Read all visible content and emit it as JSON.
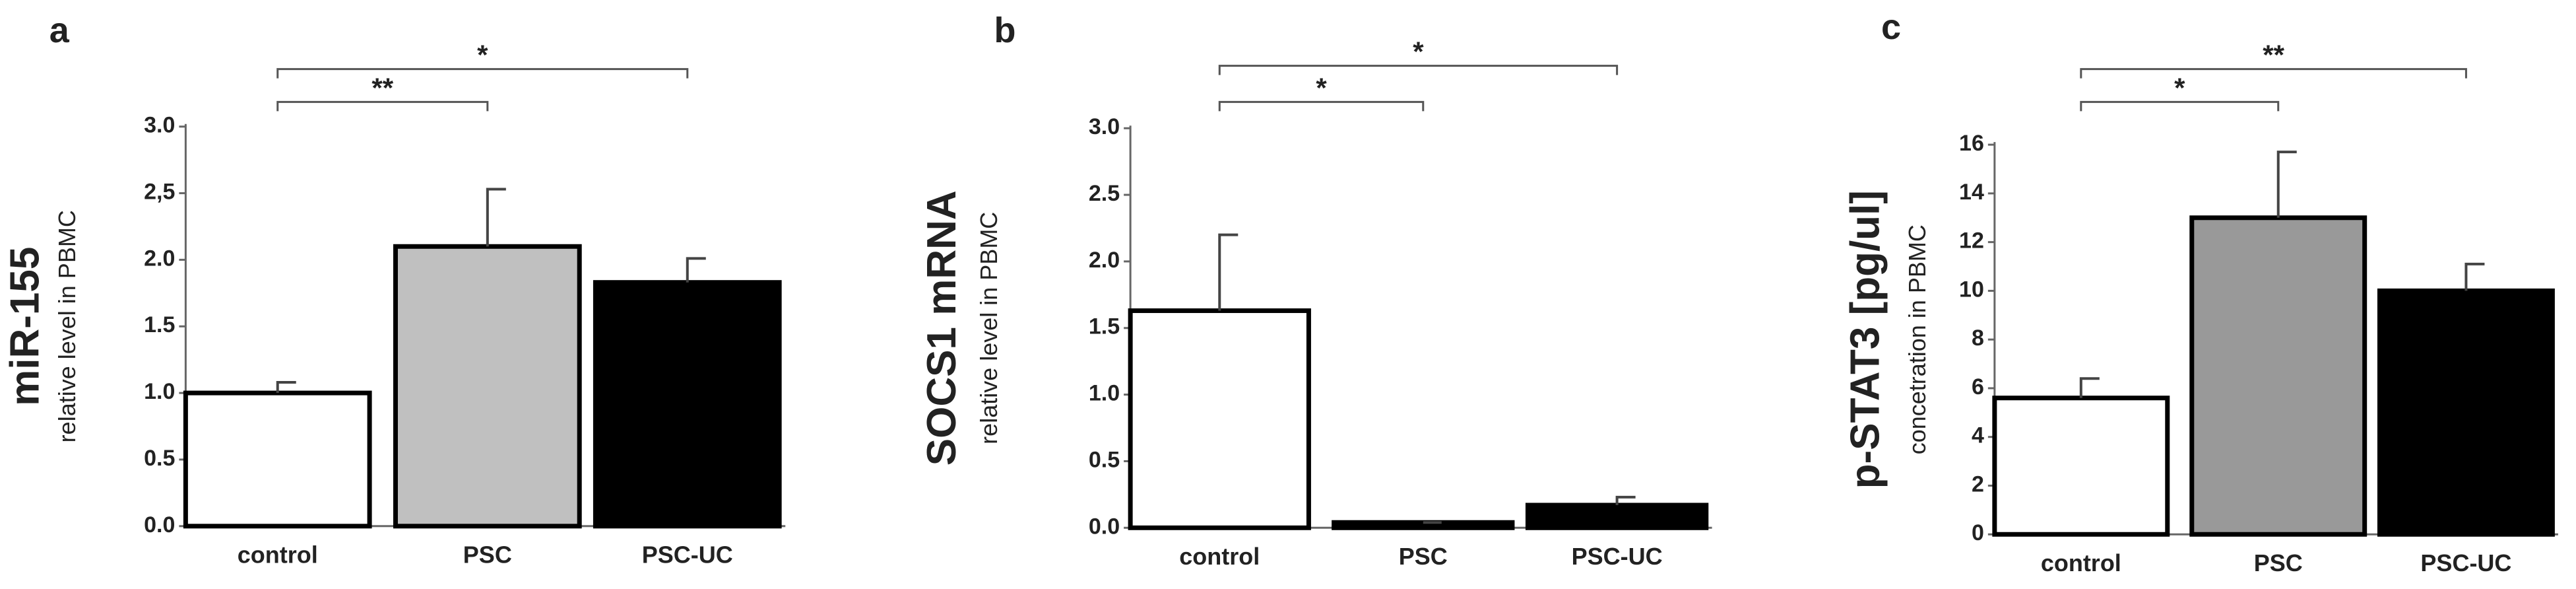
{
  "chart_data": [
    {
      "type": "bar",
      "panel_label": "a",
      "ylabel": "miR-155",
      "ylabel_sub": "relative level in PBMC",
      "categories": [
        "control",
        "PSC",
        "PSC-UC"
      ],
      "values": [
        1.0,
        2.1,
        1.83
      ],
      "errors": [
        0.08,
        0.43,
        0.18
      ],
      "colors": [
        "#ffffff",
        "#c0c0c0",
        "#000000"
      ],
      "ylim": [
        0,
        3
      ],
      "yticks": [
        {
          "value": 0,
          "label": "0.0"
        },
        0.5,
        {
          "value": 1,
          "label": "1.0"
        },
        1.5,
        {
          "value": 2,
          "label": "2.0"
        },
        {
          "value": 2.5,
          "label": "2,5"
        },
        {
          "value": 3,
          "label": "3.0"
        }
      ],
      "significance": [
        {
          "between": [
            0,
            1
          ],
          "label": "**"
        },
        {
          "between": [
            0,
            2
          ],
          "label": "*"
        }
      ]
    },
    {
      "type": "bar",
      "panel_label": "b",
      "ylabel": "SOCS1 mRNA",
      "ylabel_sub": "relative level in PBMC",
      "categories": [
        "control",
        "PSC",
        "PSC-UC"
      ],
      "values": [
        1.63,
        0.04,
        0.17
      ],
      "errors": [
        0.57,
        0,
        0.06
      ],
      "colors": [
        "#ffffff",
        "#000000",
        "#000000"
      ],
      "ylim": [
        0,
        3
      ],
      "yticks": [
        {
          "value": 0,
          "label": "0.0"
        },
        0.5,
        {
          "value": 1,
          "label": "1.0"
        },
        1.5,
        {
          "value": 2,
          "label": "2.0"
        },
        2.5,
        {
          "value": 3,
          "label": "3.0"
        }
      ],
      "significance": [
        {
          "between": [
            0,
            1
          ],
          "label": "*"
        },
        {
          "between": [
            0,
            2
          ],
          "label": "*"
        }
      ]
    },
    {
      "type": "bar",
      "panel_label": "c",
      "ylabel": "p-STAT3 [pg/ul]",
      "ylabel_sub": "concetration in PBMC",
      "categories": [
        "control",
        "PSC",
        "PSC-UC"
      ],
      "values": [
        5.6,
        13.0,
        10.0
      ],
      "errors": [
        0.8,
        2.7,
        1.1
      ],
      "colors": [
        "#ffffff",
        "#999999",
        "#000000"
      ],
      "ylim": [
        0,
        16
      ],
      "yticks": [
        0,
        2,
        4,
        6,
        8,
        10,
        12,
        14,
        16
      ],
      "significance": [
        {
          "between": [
            0,
            1
          ],
          "label": "*"
        },
        {
          "between": [
            0,
            2
          ],
          "label": "**"
        }
      ]
    }
  ]
}
